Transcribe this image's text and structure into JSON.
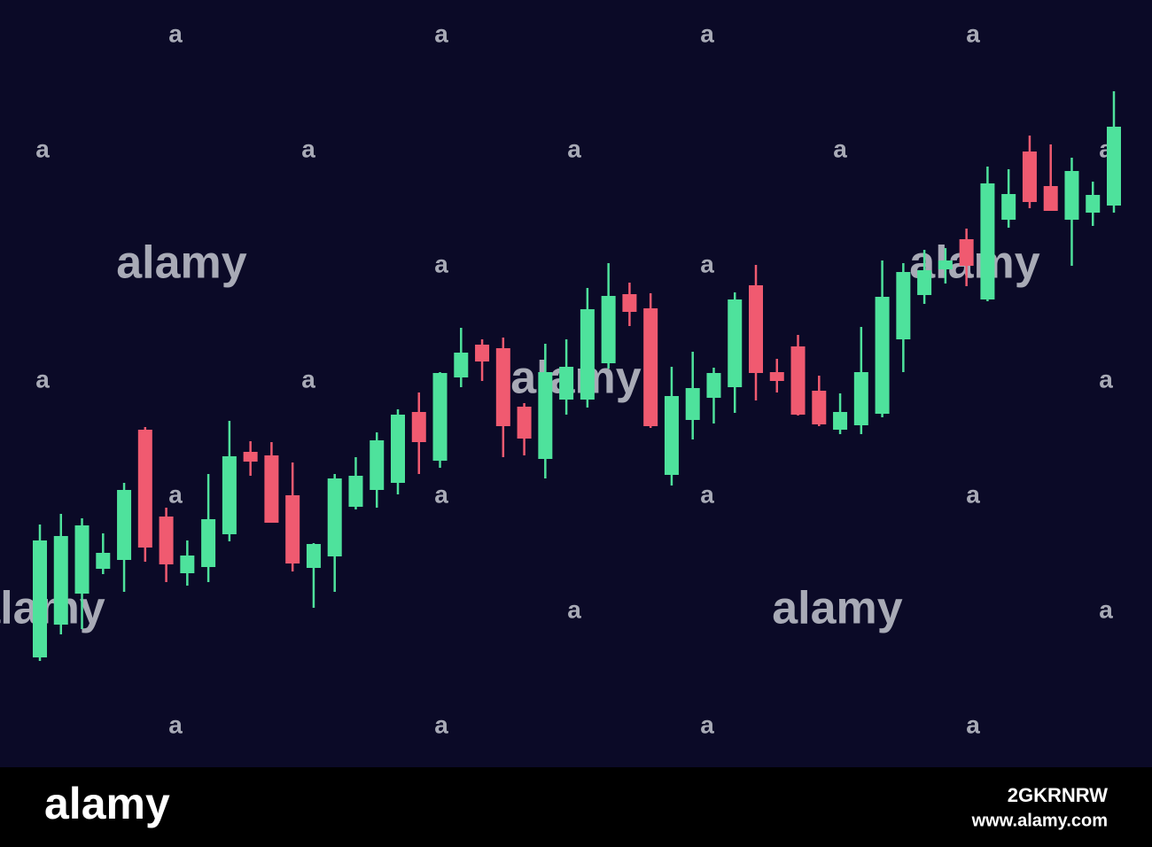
{
  "chart_data": {
    "type": "candlestick",
    "open": [
      124,
      161,
      196,
      224,
      234,
      381,
      283,
      219,
      226,
      263,
      356,
      352,
      307,
      225,
      238,
      294,
      313,
      321,
      401,
      346,
      440,
      477,
      473,
      407,
      348,
      415,
      415,
      456,
      534,
      518,
      330,
      392,
      417,
      429,
      544,
      446,
      475,
      425,
      381,
      386,
      399,
      483,
      533,
      562,
      596,
      528,
      618,
      695,
      656,
      618,
      626,
      634
    ],
    "high": [
      274,
      286,
      281,
      264,
      321,
      384,
      293,
      256,
      331,
      391,
      368,
      367,
      344,
      253,
      331,
      350,
      378,
      404,
      423,
      446,
      496,
      483,
      485,
      411,
      478,
      483,
      541,
      569,
      547,
      535,
      452,
      469,
      451,
      536,
      567,
      461,
      488,
      442,
      422,
      497,
      572,
      569,
      584,
      586,
      608,
      678,
      675,
      713,
      703,
      688,
      661,
      763
    ],
    "low": [
      120,
      150,
      156,
      218,
      198,
      232,
      209,
      205,
      209,
      255,
      329,
      276,
      221,
      180,
      198,
      291,
      293,
      308,
      331,
      338,
      429,
      436,
      350,
      352,
      326,
      398,
      406,
      450,
      498,
      383,
      318,
      370,
      388,
      400,
      414,
      423,
      397,
      385,
      376,
      376,
      395,
      446,
      523,
      546,
      543,
      526,
      609,
      631,
      628,
      566,
      611,
      626
    ],
    "close": [
      256,
      261,
      273,
      242,
      313,
      248,
      229,
      239,
      280,
      351,
      345,
      276,
      230,
      252,
      326,
      329,
      369,
      398,
      367,
      445,
      468,
      458,
      385,
      371,
      446,
      452,
      517,
      532,
      514,
      385,
      419,
      428,
      445,
      528,
      445,
      436,
      398,
      387,
      401,
      446,
      531,
      559,
      561,
      572,
      566,
      659,
      647,
      638,
      628,
      673,
      646,
      723
    ],
    "up_color": "#4ee29c",
    "down_color": "#f05a70",
    "ylim": [
      0,
      866
    ]
  },
  "watermark": "alamy",
  "watermark_icon": "a",
  "footer": {
    "brand": "alamy",
    "image_id": "2GKRNRW",
    "website": "www.alamy.com"
  }
}
